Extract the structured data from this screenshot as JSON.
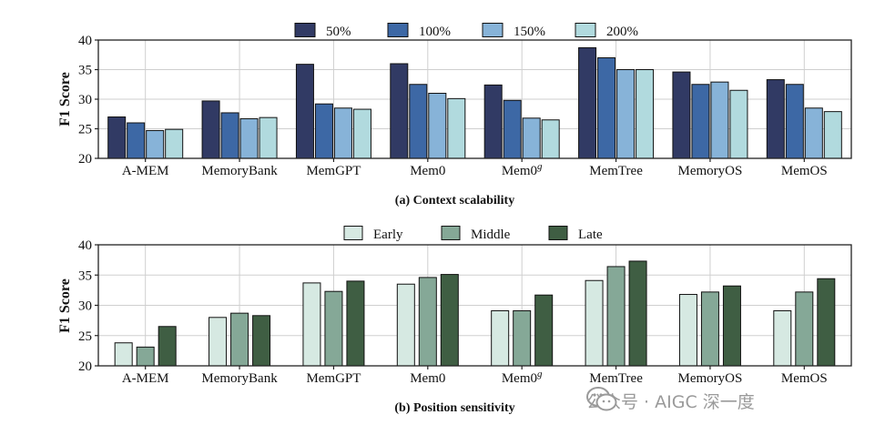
{
  "chart_data": [
    {
      "type": "bar",
      "caption": "(a) Context scalability",
      "ylabel": "F1 Score",
      "ylim": [
        20,
        40
      ],
      "yticks": [
        20,
        25,
        30,
        35,
        40
      ],
      "grid": true,
      "legend_position": "top-center",
      "categories": [
        "A-MEM",
        "MemoryBank",
        "MemGPT",
        "Mem0",
        "Mem0",
        "MemTree",
        "MemoryOS",
        "MemOS"
      ],
      "category_superscripts": [
        "",
        "",
        "",
        "",
        "g",
        "",
        "",
        ""
      ],
      "series": [
        {
          "name": "50%",
          "color": "#313a64",
          "values": [
            27.0,
            29.7,
            35.9,
            36.0,
            32.4,
            38.7,
            34.6,
            33.3
          ]
        },
        {
          "name": "100%",
          "color": "#3d68a5",
          "values": [
            26.0,
            27.7,
            29.2,
            32.5,
            29.8,
            37.0,
            32.5,
            32.5
          ]
        },
        {
          "name": "150%",
          "color": "#87b3d8",
          "values": [
            24.7,
            26.7,
            28.5,
            31.0,
            26.8,
            35.0,
            32.9,
            28.5
          ]
        },
        {
          "name": "200%",
          "color": "#b1dade",
          "values": [
            24.9,
            26.9,
            28.3,
            30.1,
            26.5,
            35.0,
            31.5,
            27.9
          ]
        }
      ]
    },
    {
      "type": "bar",
      "caption": "(b) Position sensitivity",
      "ylabel": "F1 Score",
      "ylim": [
        20,
        40
      ],
      "yticks": [
        20,
        25,
        30,
        35,
        40
      ],
      "grid": true,
      "legend_position": "top-center",
      "categories": [
        "A-MEM",
        "MemoryBank",
        "MemGPT",
        "Mem0",
        "Mem0",
        "MemTree",
        "MemoryOS",
        "MemOS"
      ],
      "category_superscripts": [
        "",
        "",
        "",
        "",
        "g",
        "",
        "",
        ""
      ],
      "series": [
        {
          "name": "Early",
          "color": "#d6e9e2",
          "values": [
            23.8,
            28.0,
            33.7,
            33.5,
            29.1,
            34.1,
            31.8,
            29.1
          ]
        },
        {
          "name": "Middle",
          "color": "#85a897",
          "values": [
            23.1,
            28.7,
            32.3,
            34.6,
            29.1,
            36.4,
            32.2,
            32.2
          ]
        },
        {
          "name": "Late",
          "color": "#3f5e43",
          "values": [
            26.5,
            28.3,
            34.0,
            35.1,
            31.7,
            37.3,
            33.2,
            34.4
          ]
        }
      ]
    }
  ],
  "watermark": {
    "text": "公众号 · AIGC 深一度",
    "icon": "wechat-icon"
  }
}
